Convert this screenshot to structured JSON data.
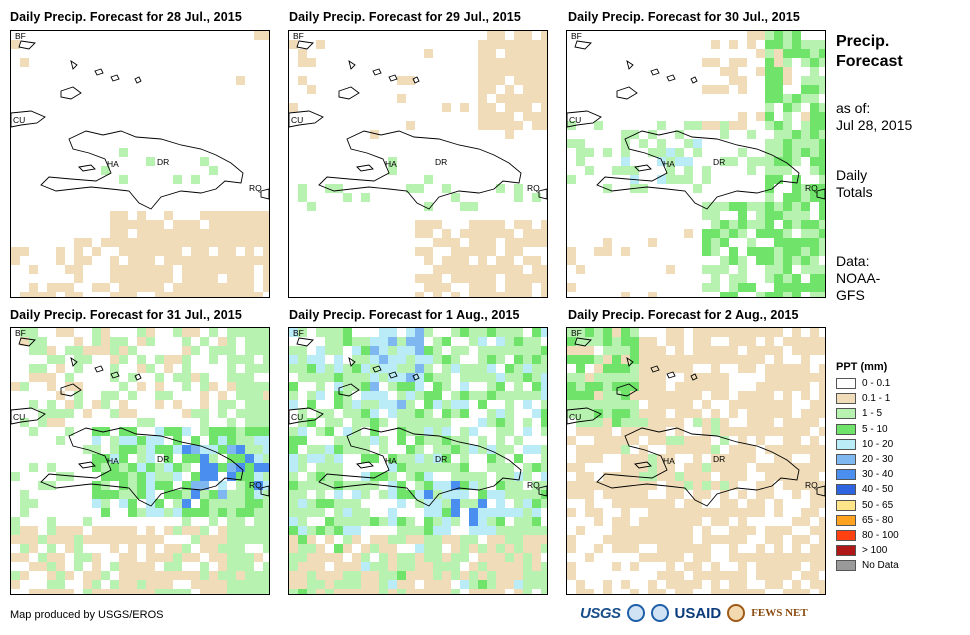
{
  "panels": [
    {
      "title": "Daily Precip. Forecast for 28 Jul., 2015"
    },
    {
      "title": "Daily Precip. Forecast for 29 Jul., 2015"
    },
    {
      "title": "Daily Precip. Forecast for 30 Jul., 2015"
    },
    {
      "title": "Daily Precip. Forecast for 31 Jul., 2015"
    },
    {
      "title": "Daily Precip. Forecast for 1 Aug., 2015"
    },
    {
      "title": "Daily Precip. Forecast for 2 Aug., 2015"
    }
  ],
  "map_labels": {
    "bf": "BF",
    "cu": "CU",
    "ha": "HA",
    "dr": "DR",
    "rq": "RQ"
  },
  "sidebar": {
    "title_line1": "Precip.",
    "title_line2": "Forecast",
    "asof_line1": "as of:",
    "asof_line2": "Jul 28, 2015",
    "daily_line1": "Daily",
    "daily_line2": "Totals",
    "data_line1": "Data:",
    "data_line2": "NOAA-",
    "data_line3": "GFS"
  },
  "legend": {
    "title": "PPT (mm)",
    "items": [
      {
        "label": "0 - 0.1",
        "color": "#ffffff"
      },
      {
        "label": "0.1 - 1",
        "color": "#f0dcb8"
      },
      {
        "label": "1 - 5",
        "color": "#b7f2b0"
      },
      {
        "label": "5 - 10",
        "color": "#6fe36a"
      },
      {
        "label": "10 - 20",
        "color": "#b9ecf6"
      },
      {
        "label": "20 - 30",
        "color": "#7fb8f0"
      },
      {
        "label": "30 - 40",
        "color": "#4a8ef0"
      },
      {
        "label": "40 - 50",
        "color": "#2f64e0"
      },
      {
        "label": "50 - 65",
        "color": "#ffe58a"
      },
      {
        "label": "65 - 80",
        "color": "#ffa21f"
      },
      {
        "label": "80 - 100",
        "color": "#ff4010"
      },
      {
        "label": "> 100",
        "color": "#b01818"
      },
      {
        "label": "No Data",
        "color": "#9a9a9a"
      }
    ]
  },
  "credit": "Map produced by USGS/EROS",
  "logos": {
    "usgs": "USGS",
    "usaid": "USAID",
    "fews": "FEWS NET"
  }
}
